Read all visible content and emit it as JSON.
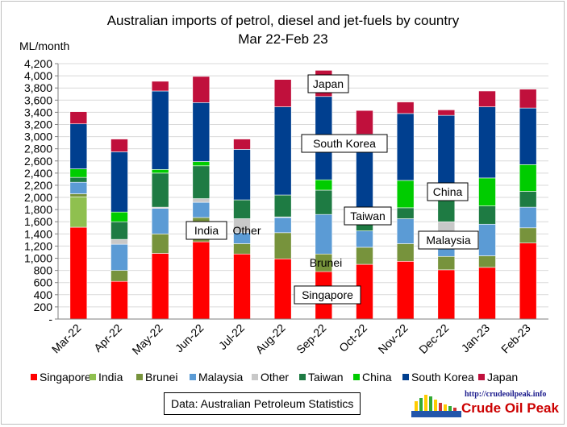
{
  "chart_data": {
    "type": "bar",
    "stacked": true,
    "title": [
      "Australian imports of petrol, diesel and jet-fuels by country",
      "Mar 22-Feb 23"
    ],
    "ylabel": "ML/month",
    "ylim": [
      0,
      4200
    ],
    "yticks": [
      0,
      200,
      400,
      600,
      800,
      1000,
      1200,
      1400,
      1600,
      1800,
      2000,
      2200,
      2400,
      2600,
      2800,
      3000,
      3200,
      3400,
      3600,
      3800,
      4000,
      4200
    ],
    "ytick_labels": [
      "-",
      "200",
      "400",
      "600",
      "800",
      "1,000",
      "1,200",
      "1,400",
      "1,600",
      "1,800",
      "2,000",
      "2,200",
      "2,400",
      "2,600",
      "2,800",
      "3,000",
      "3,200",
      "3,400",
      "3,600",
      "3,800",
      "4,000",
      "4,200"
    ],
    "grid": "horizontal",
    "legend_position": "bottom",
    "categories": [
      "Mar-22",
      "Apr-22",
      "May-22",
      "Jun-22",
      "Jul-22",
      "Aug-22",
      "Sep-22",
      "Oct-22",
      "Nov-22",
      "Dec-22",
      "Jan-23",
      "Feb-23"
    ],
    "series": [
      {
        "name": "Singapore",
        "color": "#ff0000",
        "values": [
          1510,
          620,
          1080,
          1270,
          1070,
          990,
          780,
          900,
          950,
          810,
          850,
          1250
        ]
      },
      {
        "name": "India",
        "color": "#8fc04f",
        "values": [
          500,
          0,
          0,
          0,
          0,
          0,
          0,
          0,
          0,
          0,
          0,
          0
        ]
      },
      {
        "name": "Brunei",
        "color": "#77933c",
        "values": [
          50,
          180,
          320,
          400,
          170,
          430,
          290,
          280,
          290,
          220,
          190,
          250
        ]
      },
      {
        "name": "Malaysia",
        "color": "#5b9bd5",
        "values": [
          190,
          430,
          420,
          250,
          180,
          250,
          650,
          270,
          410,
          280,
          520,
          340
        ]
      },
      {
        "name": "Other",
        "color": "#c8c8c8",
        "values": [
          0,
          80,
          20,
          60,
          230,
          10,
          0,
          0,
          0,
          290,
          0,
          0
        ]
      },
      {
        "name": "Taiwan",
        "color": "#1e7b43",
        "values": [
          80,
          290,
          560,
          540,
          310,
          360,
          400,
          140,
          180,
          410,
          300,
          260
        ]
      },
      {
        "name": "China",
        "color": "#00cc00",
        "values": [
          140,
          160,
          60,
          70,
          0,
          0,
          170,
          150,
          450,
          160,
          460,
          440
        ]
      },
      {
        "name": "South Korea",
        "color": "#003f8f",
        "values": [
          740,
          990,
          1290,
          970,
          830,
          1450,
          1370,
          1300,
          1100,
          1180,
          1170,
          930
        ]
      },
      {
        "name": "Japan",
        "color": "#c0103c",
        "values": [
          200,
          210,
          160,
          430,
          170,
          450,
          430,
          390,
          190,
          90,
          260,
          310
        ]
      }
    ],
    "annotations": [
      {
        "text": "Japan",
        "boxed": true
      },
      {
        "text": "South  Korea",
        "boxed": true
      },
      {
        "text": "China",
        "boxed": true
      },
      {
        "text": "Taiwan",
        "boxed": true
      },
      {
        "text": "Malaysia",
        "boxed": true
      },
      {
        "text": "India",
        "boxed": true
      },
      {
        "text": "Other",
        "boxed": false
      },
      {
        "text": "Brunei",
        "boxed": false
      },
      {
        "text": "Singapore",
        "boxed": true
      }
    ]
  },
  "source_note": "Data: Australian Petroleum Statistics",
  "logo": {
    "url_text": "http://crudeoilpeak.info",
    "name": "Crude Oil Peak"
  }
}
